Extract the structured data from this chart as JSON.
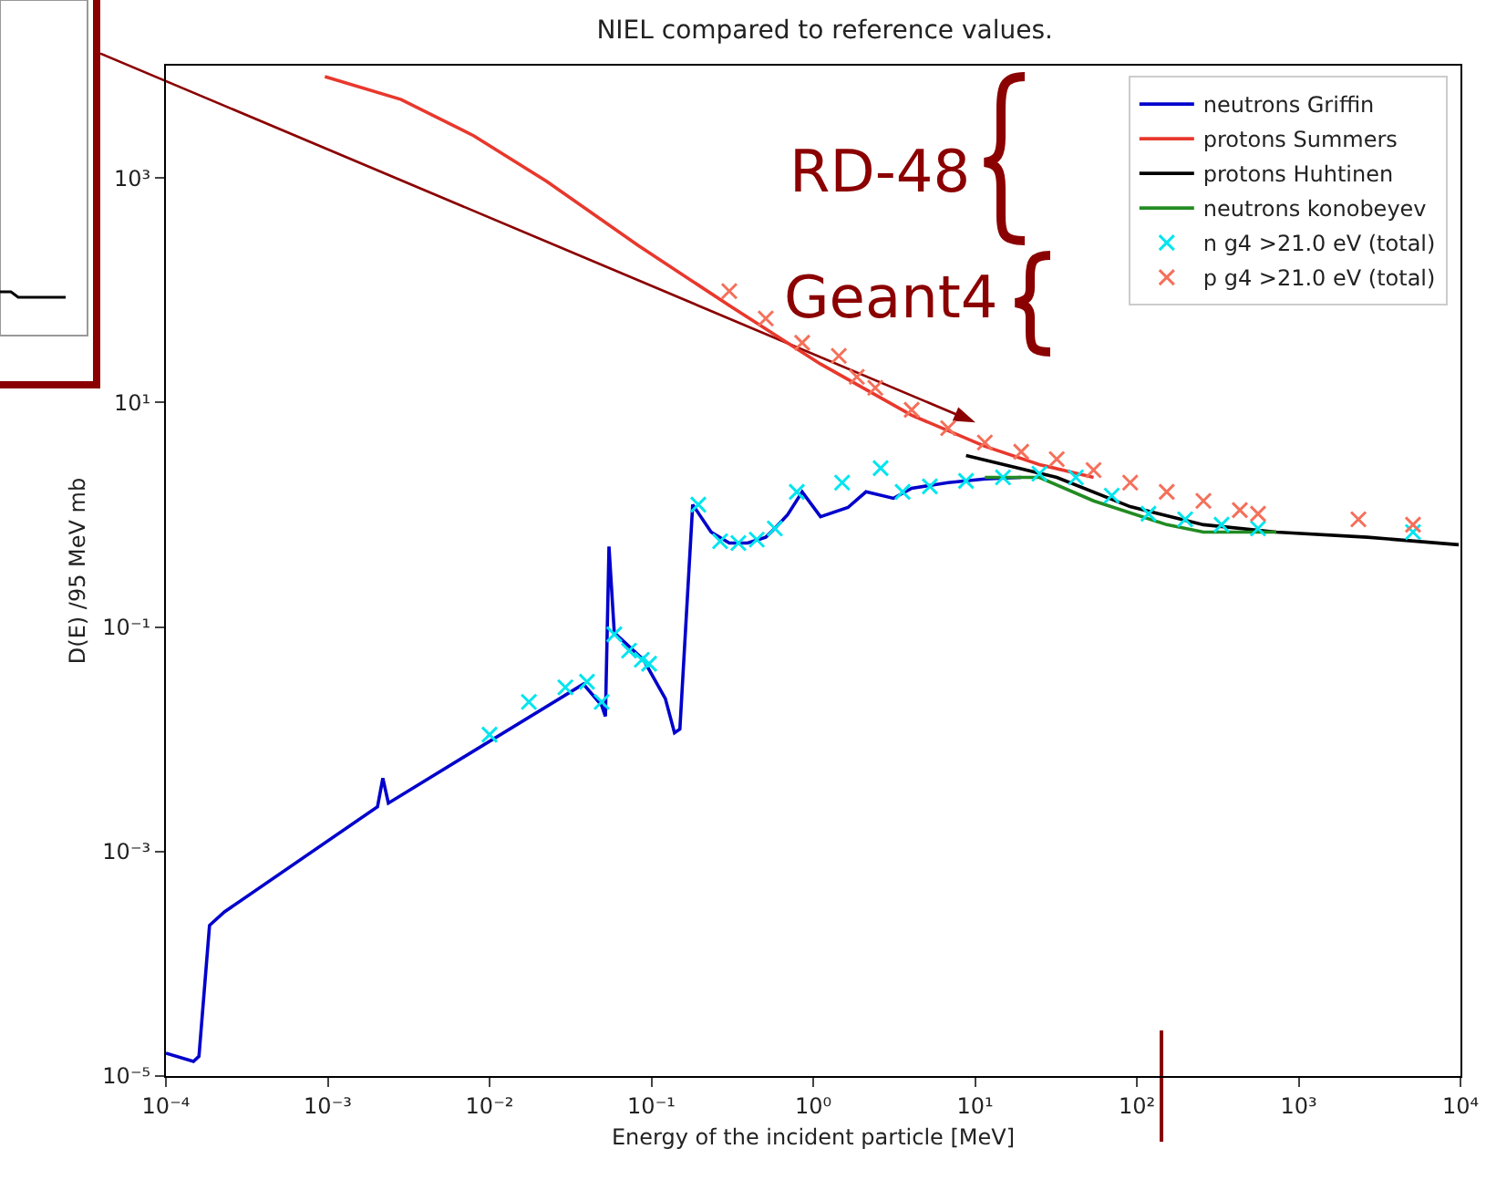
{
  "chart_data": {
    "type": "line",
    "title": "NIEL compared to reference values.",
    "xlabel": "Energy of the incident particle [MeV]",
    "ylabel": "D(E) /95 MeV mb",
    "log": "xy",
    "grid": false,
    "legend": "top right",
    "xlim": [
      0.0001,
      10000
    ],
    "ylim": [
      1e-05,
      10000
    ],
    "xticks": [
      {
        "value": 0.0001,
        "label": "10⁻⁴"
      },
      {
        "value": 0.001,
        "label": "10⁻³"
      },
      {
        "value": 0.01,
        "label": "10⁻²"
      },
      {
        "value": 0.1,
        "label": "10⁻¹"
      },
      {
        "value": 1,
        "label": "10⁰"
      },
      {
        "value": 10,
        "label": "10¹"
      },
      {
        "value": 100,
        "label": "10²"
      },
      {
        "value": 1000,
        "label": "10³"
      },
      {
        "value": 10000,
        "label": "10⁴"
      }
    ],
    "yticks": [
      {
        "value": 1e-05,
        "label": "10⁻⁵"
      },
      {
        "value": 0.001,
        "label": "10⁻³"
      },
      {
        "value": 0.1,
        "label": "10⁻¹"
      },
      {
        "value": 10,
        "label": "10¹"
      },
      {
        "value": 1000,
        "label": "10³"
      }
    ],
    "annotations": [
      "RD-48",
      "Geant4"
    ],
    "series": [
      {
        "name": "neutrons Griffin",
        "color": "#0000cc",
        "x": [
          0.0001,
          0.000148,
          0.00016,
          0.000186,
          0.00023,
          0.00203,
          0.00219,
          0.00237,
          0.038,
          0.0493,
          0.052,
          0.0547,
          0.059,
          0.0895,
          0.122,
          0.139,
          0.15,
          0.18,
          0.234,
          0.303,
          0.393,
          0.509,
          0.579,
          0.695,
          0.855,
          1.11,
          1.64,
          2.12,
          3.13,
          4.06,
          6.82,
          11.5,
          19.3
        ],
        "values": [
          1.6e-05,
          1.35e-05,
          1.5e-05,
          0.00022,
          0.00029,
          0.0025,
          0.0045,
          0.0027,
          0.031,
          0.02,
          0.016,
          0.52,
          0.089,
          0.051,
          0.023,
          0.0114,
          0.0123,
          1.23,
          0.7,
          0.56,
          0.56,
          0.63,
          0.755,
          1.0,
          1.6,
          0.96,
          1.16,
          1.6,
          1.4,
          1.72,
          1.93,
          2.08,
          2.15
        ]
      },
      {
        "name": "protons Summers",
        "color": "#e8382d",
        "x": [
          0.00096,
          0.00284,
          0.008,
          0.0226,
          0.083,
          0.303,
          1.11,
          4.06,
          11.5,
          25,
          54
        ],
        "values": [
          8000,
          5000,
          2370,
          930,
          250,
          73,
          22,
          7.7,
          4.07,
          2.8,
          2.15
        ]
      },
      {
        "name": "protons Huhtinen",
        "color": "#000000",
        "x": [
          8.8,
          32,
          91,
          258,
          728,
          2660,
          9750
        ],
        "values": [
          3.37,
          2.15,
          1.18,
          0.815,
          0.7,
          0.63,
          0.54
        ]
      },
      {
        "name": "neutrons konobeyev",
        "color": "#228b22",
        "x": [
          11.5,
          25,
          54,
          153,
          258,
          728
        ],
        "values": [
          2.15,
          2.15,
          1.33,
          0.815,
          0.7,
          0.7
        ]
      },
      {
        "name": "n g4 >21.0 eV (total)",
        "type": "scatter",
        "marker": "cross",
        "color": "#00e5ee",
        "x": [
          0.01,
          0.0175,
          0.0294,
          0.04,
          0.0493,
          0.059,
          0.0728,
          0.0873,
          0.0968,
          0.195,
          0.266,
          0.345,
          0.448,
          0.579,
          0.792,
          1.51,
          2.61,
          3.57,
          5.26,
          8.8,
          14.9,
          25,
          42,
          70,
          118,
          199,
          334,
          561,
          5090
        ],
        "values": [
          0.011,
          0.0215,
          0.029,
          0.0325,
          0.0215,
          0.086,
          0.0615,
          0.051,
          0.047,
          1.23,
          0.58,
          0.56,
          0.6,
          0.755,
          1.6,
          1.93,
          2.6,
          1.6,
          1.79,
          2.0,
          2.15,
          2.32,
          2.15,
          1.48,
          1.02,
          0.91,
          0.815,
          0.755,
          0.7
        ]
      },
      {
        "name": "p g4 >21.0 eV (total)",
        "type": "scatter",
        "marker": "cross",
        "color": "#f4705a",
        "x": [
          0.303,
          0.509,
          0.855,
          1.44,
          1.86,
          2.42,
          4.06,
          6.82,
          11.5,
          19.3,
          32,
          54,
          91,
          153,
          258,
          433,
          561,
          2340,
          5090
        ],
        "values": [
          98,
          56,
          34,
          26,
          16.9,
          13.5,
          8.6,
          5.9,
          4.4,
          3.64,
          3.13,
          2.5,
          1.93,
          1.6,
          1.33,
          1.1,
          1.02,
          0.91,
          0.815
        ]
      }
    ]
  }
}
